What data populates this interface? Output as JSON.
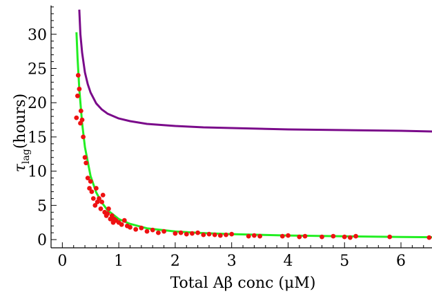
{
  "chart_data": {
    "type": "scatter",
    "xlabel": "Total Aβ conc (μM)",
    "ylabel_parts": {
      "symbol": "τ",
      "subscript": "lag",
      "rest": "(hours)"
    },
    "xlim": [
      -0.2,
      6.55
    ],
    "ylim": [
      -1.2,
      34.2
    ],
    "x_ticks": [
      0,
      1,
      2,
      3,
      4,
      5,
      6
    ],
    "y_ticks": [
      0,
      5,
      10,
      15,
      20,
      25,
      30
    ],
    "grid": false,
    "legend": "none",
    "colors": {
      "points": "#ee1111",
      "fit_curve": "#22ee22",
      "upper_curve": "#7a0a8a"
    },
    "series": [
      {
        "kind": "points",
        "x": [
          0.25,
          0.27,
          0.28,
          0.3,
          0.32,
          0.33,
          0.35,
          0.37,
          0.4,
          0.42,
          0.45,
          0.48,
          0.5,
          0.52,
          0.55,
          0.58,
          0.6,
          0.62,
          0.65,
          0.68,
          0.7,
          0.72,
          0.75,
          0.78,
          0.8,
          0.82,
          0.85,
          0.88,
          0.9,
          0.92,
          0.95,
          1.0,
          1.05,
          1.1,
          1.15,
          1.2,
          1.3,
          1.4,
          1.5,
          1.6,
          1.7,
          1.8,
          2.0,
          2.1,
          2.2,
          2.3,
          2.4,
          2.5,
          2.6,
          2.7,
          2.8,
          2.9,
          3.0,
          3.3,
          3.4,
          3.5,
          3.9,
          4.0,
          4.2,
          4.3,
          4.6,
          4.8,
          5.0,
          5.1,
          5.2,
          5.8,
          6.5
        ],
        "y": [
          17.8,
          21.0,
          24.0,
          22.0,
          17.0,
          18.8,
          17.5,
          15.0,
          12.0,
          11.2,
          9.0,
          7.5,
          8.5,
          7.0,
          6.0,
          5.0,
          7.5,
          5.5,
          6.0,
          4.5,
          5.5,
          6.5,
          4.0,
          3.5,
          3.8,
          4.5,
          3.0,
          3.5,
          2.5,
          3.0,
          2.8,
          2.5,
          2.2,
          2.8,
          2.0,
          1.8,
          1.5,
          1.7,
          1.2,
          1.4,
          1.0,
          1.2,
          0.9,
          1.0,
          0.8,
          0.9,
          1.0,
          0.7,
          0.8,
          0.7,
          0.6,
          0.7,
          0.8,
          0.5,
          0.6,
          0.5,
          0.5,
          0.6,
          0.4,
          0.5,
          0.4,
          0.5,
          0.4,
          0.3,
          0.5,
          0.4,
          0.3
        ]
      },
      {
        "kind": "curve",
        "x": [
          0.25,
          0.27,
          0.3,
          0.35,
          0.4,
          0.5,
          0.6,
          0.7,
          0.8,
          1.0,
          1.2,
          1.5,
          2.0,
          2.5,
          3.0,
          4.0,
          5.0,
          6.0,
          6.55
        ],
        "y": [
          30.3,
          26.5,
          22.0,
          17.0,
          13.5,
          9.3,
          6.9,
          5.4,
          4.3,
          3.0,
          2.3,
          1.65,
          1.18,
          0.95,
          0.8,
          0.6,
          0.48,
          0.38,
          0.35
        ]
      },
      {
        "kind": "curve",
        "x": [
          0.3,
          0.32,
          0.35,
          0.4,
          0.45,
          0.5,
          0.6,
          0.7,
          0.8,
          1.0,
          1.2,
          1.5,
          2.0,
          2.5,
          3.0,
          4.0,
          5.0,
          6.0,
          6.55
        ],
        "y": [
          33.6,
          30.0,
          27.3,
          24.4,
          22.7,
          21.5,
          19.9,
          19.0,
          18.4,
          17.7,
          17.3,
          16.9,
          16.6,
          16.4,
          16.3,
          16.1,
          16.0,
          15.9,
          15.8
        ]
      }
    ]
  }
}
